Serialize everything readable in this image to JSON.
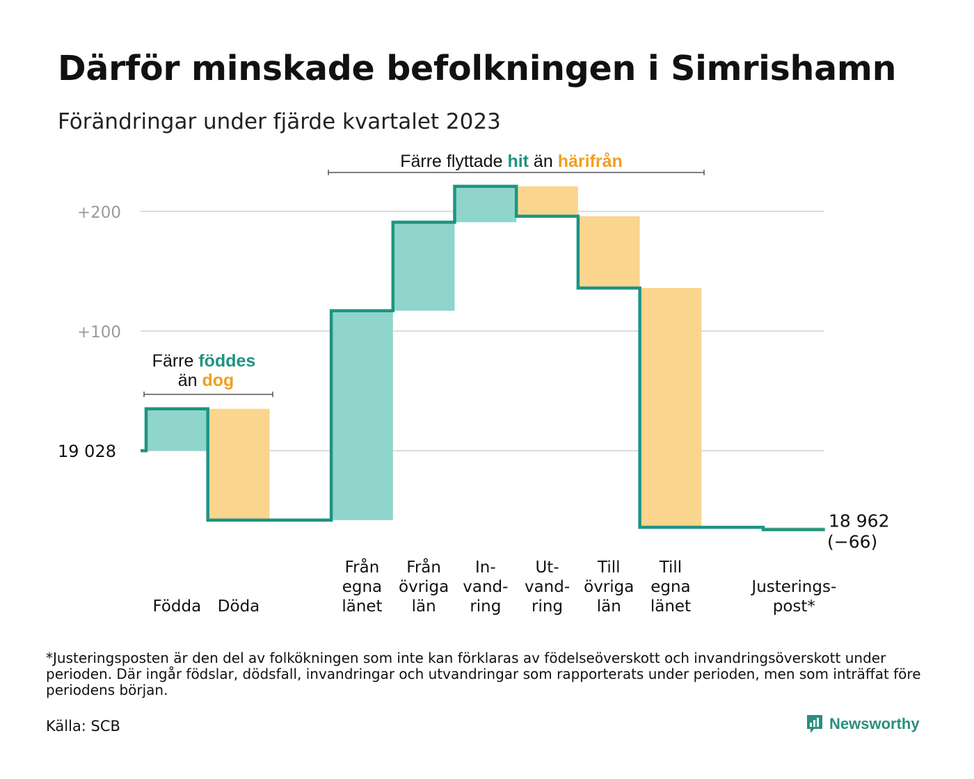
{
  "title": "Därför minskade befolkningen i Simrishamn",
  "subtitle": "Förändringar under fjärde kvartalet 2023",
  "footnote": "*Justeringsposten är den del av folkökningen som inte kan förklaras av födelseöverskott och invandringsöverskott under perioden. Där ingår födslar, dödsfall, invandringar och utvandringar som rapporterats under perioden, men som inträffat före periodens början.",
  "source": "Källa: SCB",
  "brand": "Newsworthy",
  "colors": {
    "increase": "#8fd5cb",
    "decrease": "#fad58e",
    "line": "#1e9482",
    "grid": "#dcdcdc",
    "accent_orange": "#f0a020",
    "accent_teal": "#1e9482"
  },
  "annotations": {
    "birth": {
      "line1_prefix": "Färre",
      "line1_word": "föddes",
      "line2_prefix": "än",
      "line2_word": "dog"
    },
    "migration": {
      "prefix": "Färre flyttade",
      "word1": "hit",
      "middle": "än",
      "word2": "härifrån"
    }
  },
  "chart_data": {
    "type": "waterfall",
    "baseline_label": "19  028",
    "start_value": 19028,
    "yticks": [
      {
        "value": 200,
        "label": "+200"
      },
      {
        "value": 100,
        "label": "+100"
      }
    ],
    "ylim": [
      -80,
      220
    ],
    "steps": [
      {
        "label_lines": [
          "Födda"
        ],
        "change": 35,
        "type": "increase"
      },
      {
        "label_lines": [
          "Döda"
        ],
        "change": -93,
        "type": "decrease"
      },
      {
        "label_lines": [],
        "change": 0,
        "type": "none"
      },
      {
        "label_lines": [
          "Från",
          "egna",
          "länet"
        ],
        "change": 175,
        "type": "increase"
      },
      {
        "label_lines": [
          "Från",
          "övriga",
          "län"
        ],
        "change": 74,
        "type": "increase"
      },
      {
        "label_lines": [
          "In-",
          "vand-",
          "ring"
        ],
        "change": 30,
        "type": "increase"
      },
      {
        "label_lines": [
          "Ut-",
          "vand-",
          "ring"
        ],
        "change": -25,
        "type": "decrease"
      },
      {
        "label_lines": [
          "Till",
          "övriga",
          "län"
        ],
        "change": -60,
        "type": "decrease"
      },
      {
        "label_lines": [
          "Till",
          "egna",
          "länet"
        ],
        "change": -200,
        "type": "decrease"
      },
      {
        "label_lines": [],
        "change": 0,
        "type": "none"
      },
      {
        "label_lines": [
          "Justerings-",
          "post*"
        ],
        "change": -2,
        "type": "decrease"
      }
    ],
    "end_label": "18 962",
    "end_change_label": "(−66)"
  }
}
